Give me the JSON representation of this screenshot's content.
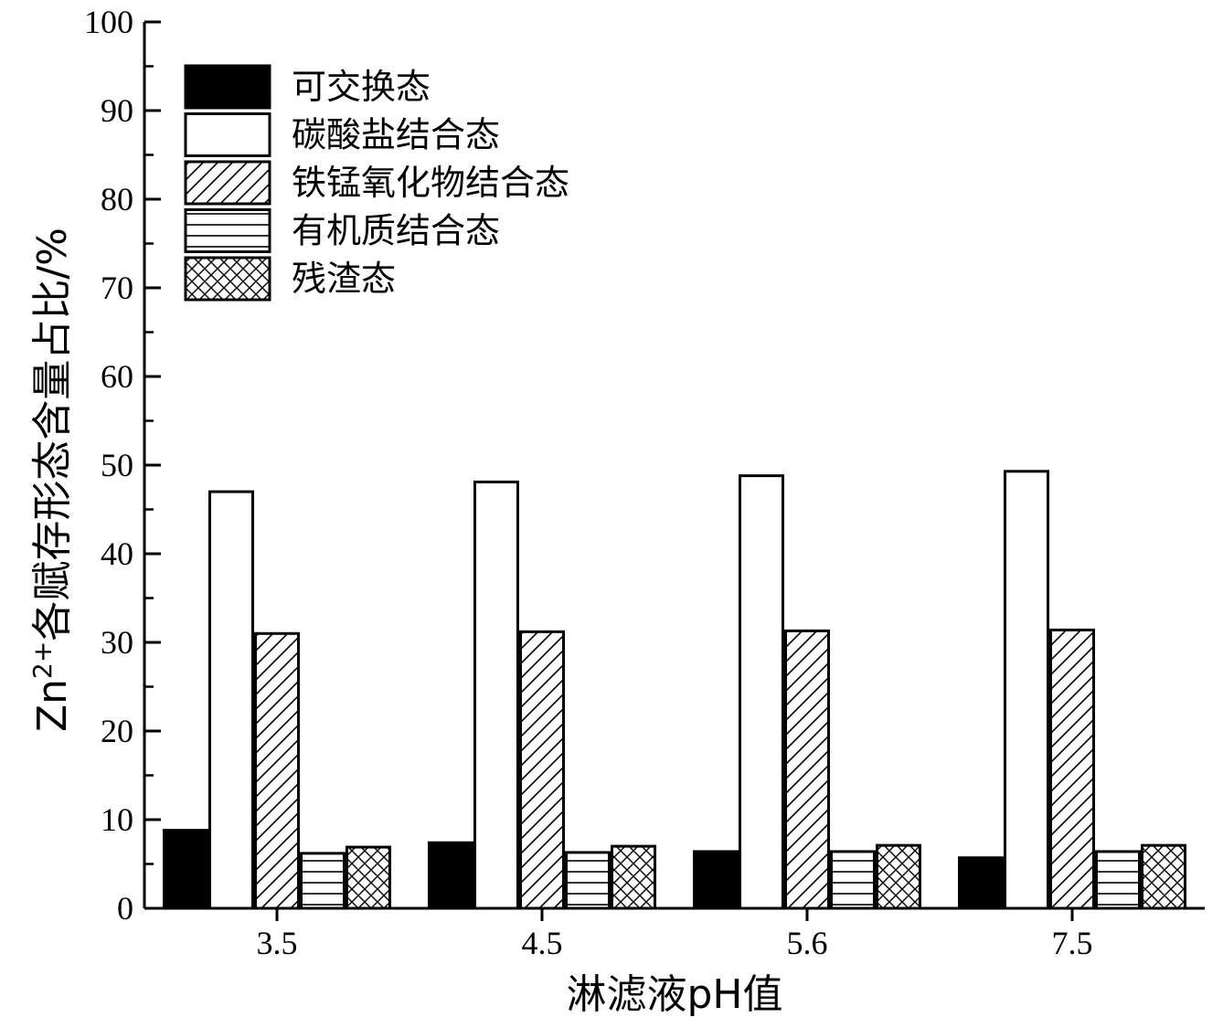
{
  "chart_data": {
    "type": "bar",
    "xlabel": "淋滤液pH值",
    "ylabel": {
      "prefix": "Zn",
      "superscript": "2+",
      "suffix": "各赋存形态含量占比/%"
    },
    "ylim": [
      0,
      100
    ],
    "yticks": [
      0,
      10,
      20,
      30,
      40,
      50,
      60,
      70,
      80,
      90,
      100
    ],
    "categories": [
      "3.5",
      "4.5",
      "5.6",
      "7.5"
    ],
    "legend_position": "top-left",
    "series": [
      {
        "name": "可交换态",
        "pattern": "solid",
        "values": [
          8.8,
          7.4,
          6.4,
          5.7
        ]
      },
      {
        "name": "碳酸盐结合态",
        "pattern": "empty",
        "values": [
          47.0,
          48.1,
          48.8,
          49.3
        ]
      },
      {
        "name": "铁锰氧化物结合态",
        "pattern": "diagonal",
        "values": [
          31.0,
          31.2,
          31.3,
          31.4
        ]
      },
      {
        "name": "有机质结合态",
        "pattern": "horizontal",
        "values": [
          6.2,
          6.3,
          6.4,
          6.4
        ]
      },
      {
        "name": "残渣态",
        "pattern": "crosshatch",
        "values": [
          6.9,
          7.0,
          7.1,
          7.1
        ]
      }
    ],
    "colors": {
      "stroke": "#000000",
      "fill": "#ffffff",
      "solid": "#000000"
    }
  }
}
